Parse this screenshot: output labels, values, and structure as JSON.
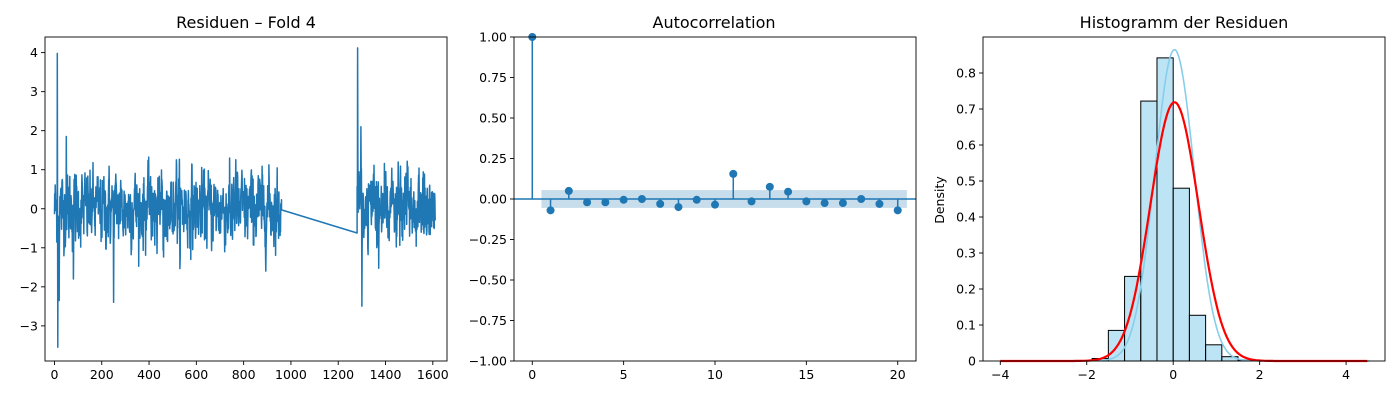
{
  "figure": {
    "background": "#ffffff"
  },
  "chart_data": [
    {
      "type": "line",
      "title": "Residuen – Fold 4",
      "xlabel": "",
      "ylabel": "",
      "xlim": [
        -40,
        1660
      ],
      "ylim": [
        -3.9,
        4.4
      ],
      "xticks": [
        0,
        200,
        400,
        600,
        800,
        1000,
        1200,
        1400,
        1600
      ],
      "yticks": [
        -3,
        -2,
        -1,
        0,
        1,
        2,
        3,
        4
      ],
      "grid": false,
      "color": "#1f77b4",
      "segments": [
        {
          "x_start": 0,
          "x_end": 960,
          "n_points": 960
        },
        {
          "x_start": 1280,
          "x_end": 1610,
          "n_points": 330
        }
      ],
      "bridge": {
        "x": [
          960,
          1280
        ],
        "y": [
          -0.03,
          -0.62
        ]
      },
      "notable_points": [
        {
          "x": 12,
          "y": 3.98
        },
        {
          "x": 14,
          "y": -3.55
        },
        {
          "x": 20,
          "y": -2.35
        },
        {
          "x": 50,
          "y": 1.85
        },
        {
          "x": 80,
          "y": -1.8
        },
        {
          "x": 250,
          "y": -2.4
        },
        {
          "x": 1282,
          "y": 4.12
        },
        {
          "x": 1296,
          "y": 2.1
        },
        {
          "x": 1300,
          "y": -2.5
        }
      ],
      "typical_std": 0.45
    },
    {
      "type": "stem",
      "title": "Autocorrelation",
      "xlabel": "",
      "ylabel": "",
      "xlim": [
        -1,
        21
      ],
      "ylim": [
        -1.0,
        1.0
      ],
      "xticks": [
        0,
        5,
        10,
        15,
        20
      ],
      "yticks": [
        -1.0,
        -0.75,
        -0.5,
        -0.25,
        0.0,
        0.25,
        0.5,
        0.75,
        1.0
      ],
      "ytick_labels": [
        "−1.00",
        "−0.75",
        "−0.50",
        "−0.25",
        "0.00",
        "0.25",
        "0.50",
        "0.75",
        "1.00"
      ],
      "grid": false,
      "color": "#1f77b4",
      "lags": [
        0,
        1,
        2,
        3,
        4,
        5,
        6,
        7,
        8,
        9,
        10,
        11,
        12,
        13,
        14,
        15,
        16,
        17,
        18,
        19,
        20
      ],
      "values": [
        1.0,
        -0.07,
        0.05,
        -0.02,
        -0.02,
        -0.005,
        0.0,
        -0.03,
        -0.05,
        -0.005,
        -0.035,
        0.155,
        -0.015,
        0.075,
        0.045,
        -0.015,
        -0.025,
        -0.025,
        0.0,
        -0.03,
        -0.07
      ],
      "confidence_band": {
        "x": [
          0.5,
          20.5
        ],
        "upper": 0.055,
        "lower": -0.055,
        "color": "#1f77b4",
        "opacity": 0.25
      }
    },
    {
      "type": "histogram",
      "title": "Histogramm der Residuen",
      "xlabel": "",
      "ylabel": "Density",
      "xlim": [
        -4.4,
        4.9
      ],
      "ylim": [
        0,
        0.9
      ],
      "xticks": [
        -4,
        -2,
        0,
        2,
        4
      ],
      "yticks": [
        0.0,
        0.1,
        0.2,
        0.3,
        0.4,
        0.5,
        0.6,
        0.7,
        0.8
      ],
      "grid": false,
      "bar_color": "#87ceeb",
      "bin_edges": [
        -1.875,
        -1.5,
        -1.125,
        -0.75,
        -0.375,
        0.0,
        0.375,
        0.75,
        1.125,
        1.5,
        1.875
      ],
      "densities": [
        0.007,
        0.085,
        0.235,
        0.722,
        0.842,
        0.48,
        0.127,
        0.045,
        0.012,
        0.003
      ],
      "kde": {
        "color": "#87ceeb",
        "mean": 0.03,
        "sd": 0.46
      },
      "normal_fit": {
        "color": "#ff0000",
        "mean": 0.03,
        "sd": 0.555,
        "x_range": [
          -4.0,
          4.5
        ]
      }
    }
  ]
}
